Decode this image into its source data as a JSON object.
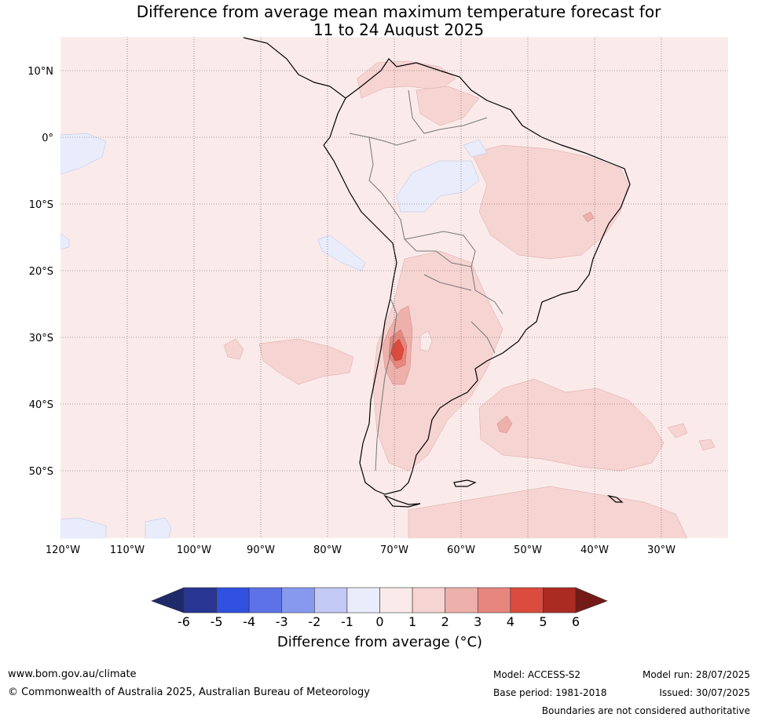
{
  "title_line1": "Difference from average mean maximum temperature forecast for",
  "title_line2": "11 to 24 August 2025",
  "lat_labels": [
    "10°N",
    "0°",
    "10°S",
    "20°S",
    "30°S",
    "40°S",
    "50°S"
  ],
  "lon_labels": [
    "120°W",
    "110°W",
    "100°W",
    "90°W",
    "80°W",
    "70°W",
    "60°W",
    "50°W",
    "40°W",
    "30°W"
  ],
  "colorbar": {
    "ticks": [
      "-6",
      "-5",
      "-4",
      "-3",
      "-2",
      "-1",
      "0",
      "1",
      "2",
      "3",
      "4",
      "5",
      "6"
    ],
    "colors": [
      "#283593",
      "#3050e0",
      "#5c72e6",
      "#8799ee",
      "#c2c9f5",
      "#e8ecfb",
      "#fbeaea",
      "#f6d4d2",
      "#edb0ab",
      "#e6867f",
      "#db4b3e",
      "#ab2a22"
    ],
    "low_color": "#1f2a6b",
    "high_color": "#741a17",
    "label": "Difference from average (°C)"
  },
  "footer": {
    "url": "www.bom.gov.au/climate",
    "copyright": "© Commonwealth of Australia 2025, Australian Bureau of Meteorology",
    "model": "Model: ACCESS-S2",
    "base_period": "Base period: 1981-2018",
    "model_run": "Model run: 28/07/2025",
    "issued": "Issued: 30/07/2025",
    "disclaimer": "Boundaries are not considered authoritative"
  }
}
